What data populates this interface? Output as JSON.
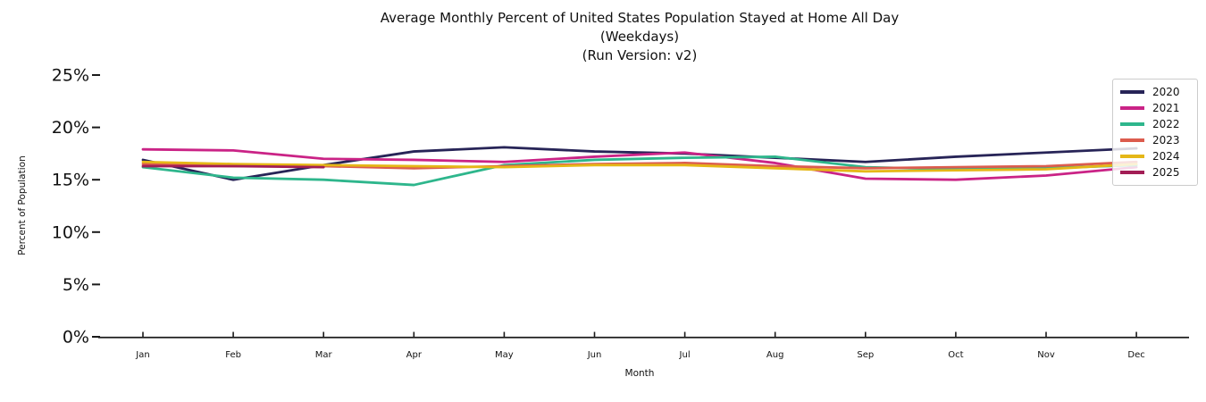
{
  "figure": {
    "title_line1": "Average Monthly Percent of United States Population Stayed at Home All Day",
    "title_line2": "(Weekdays)",
    "title_line3": "(Run Version: v2)",
    "xlabel": "Month",
    "ylabel": "Percent of Population"
  },
  "chart_data": {
    "type": "line",
    "title": "Average Monthly Percent of United States Population Stayed at Home All Day (Weekdays) (Run Version: v2)",
    "xlabel": "Month",
    "ylabel": "Percent of Population",
    "categories": [
      "Jan",
      "Feb",
      "Mar",
      "Apr",
      "May",
      "Jun",
      "Jul",
      "Aug",
      "Sep",
      "Oct",
      "Nov",
      "Dec"
    ],
    "ytick_values": [
      0,
      5,
      10,
      15,
      20,
      25
    ],
    "ytick_labels": [
      "0%",
      "5%",
      "10%",
      "15%",
      "20%",
      "25%"
    ],
    "ylim": [
      0,
      26.5
    ],
    "grid": false,
    "legend_position": "upper right",
    "axis_color": "#1a1a1a",
    "series": [
      {
        "name": "2020",
        "color": "#272457",
        "values": [
          16.9,
          15.0,
          16.4,
          17.7,
          18.1,
          17.7,
          17.5,
          17.1,
          16.7,
          17.2,
          17.6,
          18.0
        ]
      },
      {
        "name": "2021",
        "color": "#ca2386",
        "values": [
          17.9,
          17.8,
          17.0,
          16.9,
          16.7,
          17.2,
          17.6,
          16.6,
          15.1,
          15.0,
          15.4,
          16.2
        ]
      },
      {
        "name": "2022",
        "color": "#2eb68c",
        "values": [
          16.2,
          15.2,
          15.0,
          14.5,
          16.4,
          16.9,
          17.1,
          17.2,
          16.2,
          16.0,
          16.1,
          16.4
        ]
      },
      {
        "name": "2023",
        "color": "#dc5c4e",
        "values": [
          16.5,
          16.3,
          16.3,
          16.1,
          16.3,
          16.5,
          16.6,
          16.3,
          16.1,
          16.2,
          16.3,
          16.7
        ]
      },
      {
        "name": "2024",
        "color": "#e5b717",
        "values": [
          16.7,
          16.5,
          16.4,
          16.3,
          16.2,
          16.4,
          16.4,
          16.1,
          15.8,
          15.9,
          16.0,
          16.5
        ]
      },
      {
        "name": "2025",
        "color": "#a21d55",
        "values": [
          16.3,
          16.3,
          16.2,
          null,
          null,
          null,
          null,
          null,
          null,
          null,
          null,
          null
        ]
      }
    ]
  }
}
